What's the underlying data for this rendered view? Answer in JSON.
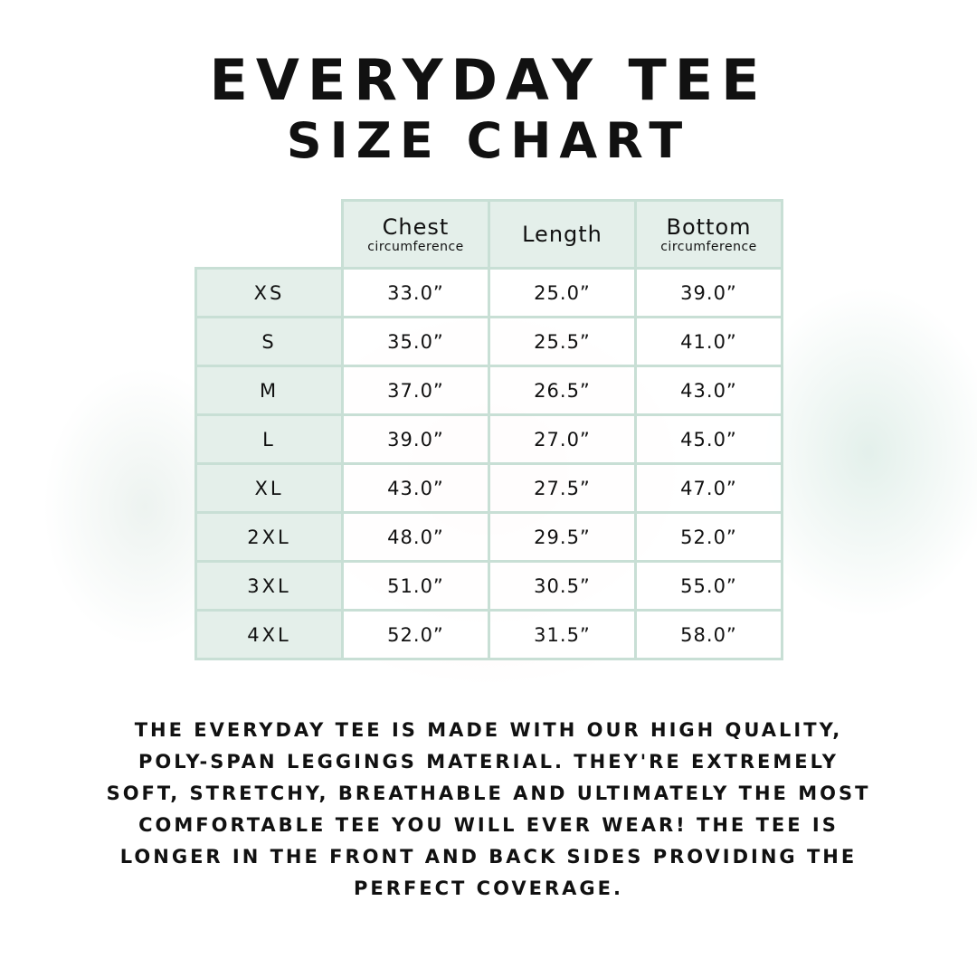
{
  "header": {
    "title": "EVERYDAY TEE",
    "subtitle": "SIZE CHART"
  },
  "table": {
    "columns": [
      {
        "label": "Chest",
        "sublabel": "circumference"
      },
      {
        "label": "Length"
      },
      {
        "label": "Bottom",
        "sublabel": "circumference"
      }
    ],
    "rows": [
      [
        "XS",
        "33.0”",
        "25.0”",
        "39.0”"
      ],
      [
        "S",
        "35.0”",
        "25.5”",
        "41.0”"
      ],
      [
        "M",
        "37.0”",
        "26.5”",
        "43.0”"
      ],
      [
        "L",
        "39.0”",
        "27.0”",
        "45.0”"
      ],
      [
        "XL",
        "43.0”",
        "27.5”",
        "47.0”"
      ],
      [
        "2XL",
        "48.0”",
        "29.5”",
        "52.0”"
      ],
      [
        "3XL",
        "51.0”",
        "30.5”",
        "55.0”"
      ],
      [
        "4XL",
        "52.0”",
        "31.5”",
        "58.0”"
      ]
    ]
  },
  "description": "THE EVERYDAY TEE IS MADE WITH OUR HIGH QUALITY, POLY-SPAN LEGGINGS MATERIAL. THEY'RE EXTREMELY SOFT, STRETCHY, BREATHABLE AND ULTIMATELY THE MOST COMFORTABLE TEE YOU WILL EVER WEAR! THE TEE IS LONGER IN THE FRONT AND BACK SIDES PROVIDING THE PERFECT COVERAGE."
}
